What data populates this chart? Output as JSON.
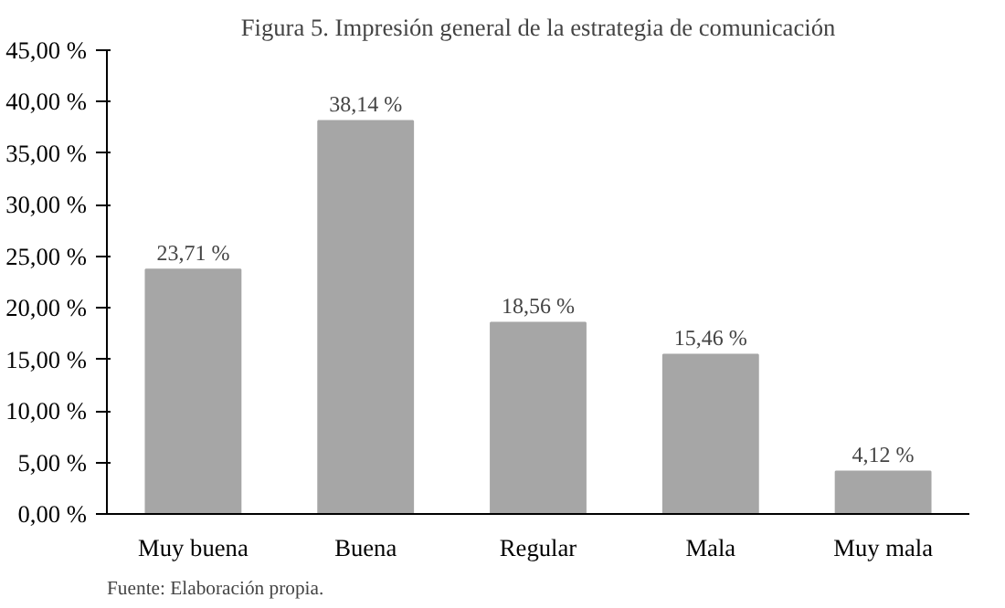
{
  "chart_data": {
    "type": "bar",
    "title": "Figura 5. Impresión general de la estrategia de comunicación",
    "categories": [
      "Muy buena",
      "Buena",
      "Regular",
      "Mala",
      "Muy mala"
    ],
    "values": [
      23.71,
      38.14,
      18.56,
      15.46,
      4.12
    ],
    "value_labels": [
      "23,71 %",
      "38,14 %",
      "18,56 %",
      "15,46 %",
      "4,12 %"
    ],
    "color": "#a6a6a6",
    "ylim": [
      0,
      45
    ],
    "yticks": [
      {
        "value": 0,
        "label": "0,00 %"
      },
      {
        "value": 5,
        "label": "5,00 %"
      },
      {
        "value": 10,
        "label": "10,00 %"
      },
      {
        "value": 15,
        "label": "15,00 %"
      },
      {
        "value": 20,
        "label": "20,00 %"
      },
      {
        "value": 25,
        "label": "25,00 %"
      },
      {
        "value": 30,
        "label": "30,00 %"
      },
      {
        "value": 35,
        "label": "35,00 %"
      },
      {
        "value": 40,
        "label": "40,00 %"
      },
      {
        "value": 45,
        "label": "45,00 %"
      }
    ],
    "grid": false,
    "annotations": [
      "Fuente: Elaboración propia."
    ]
  }
}
